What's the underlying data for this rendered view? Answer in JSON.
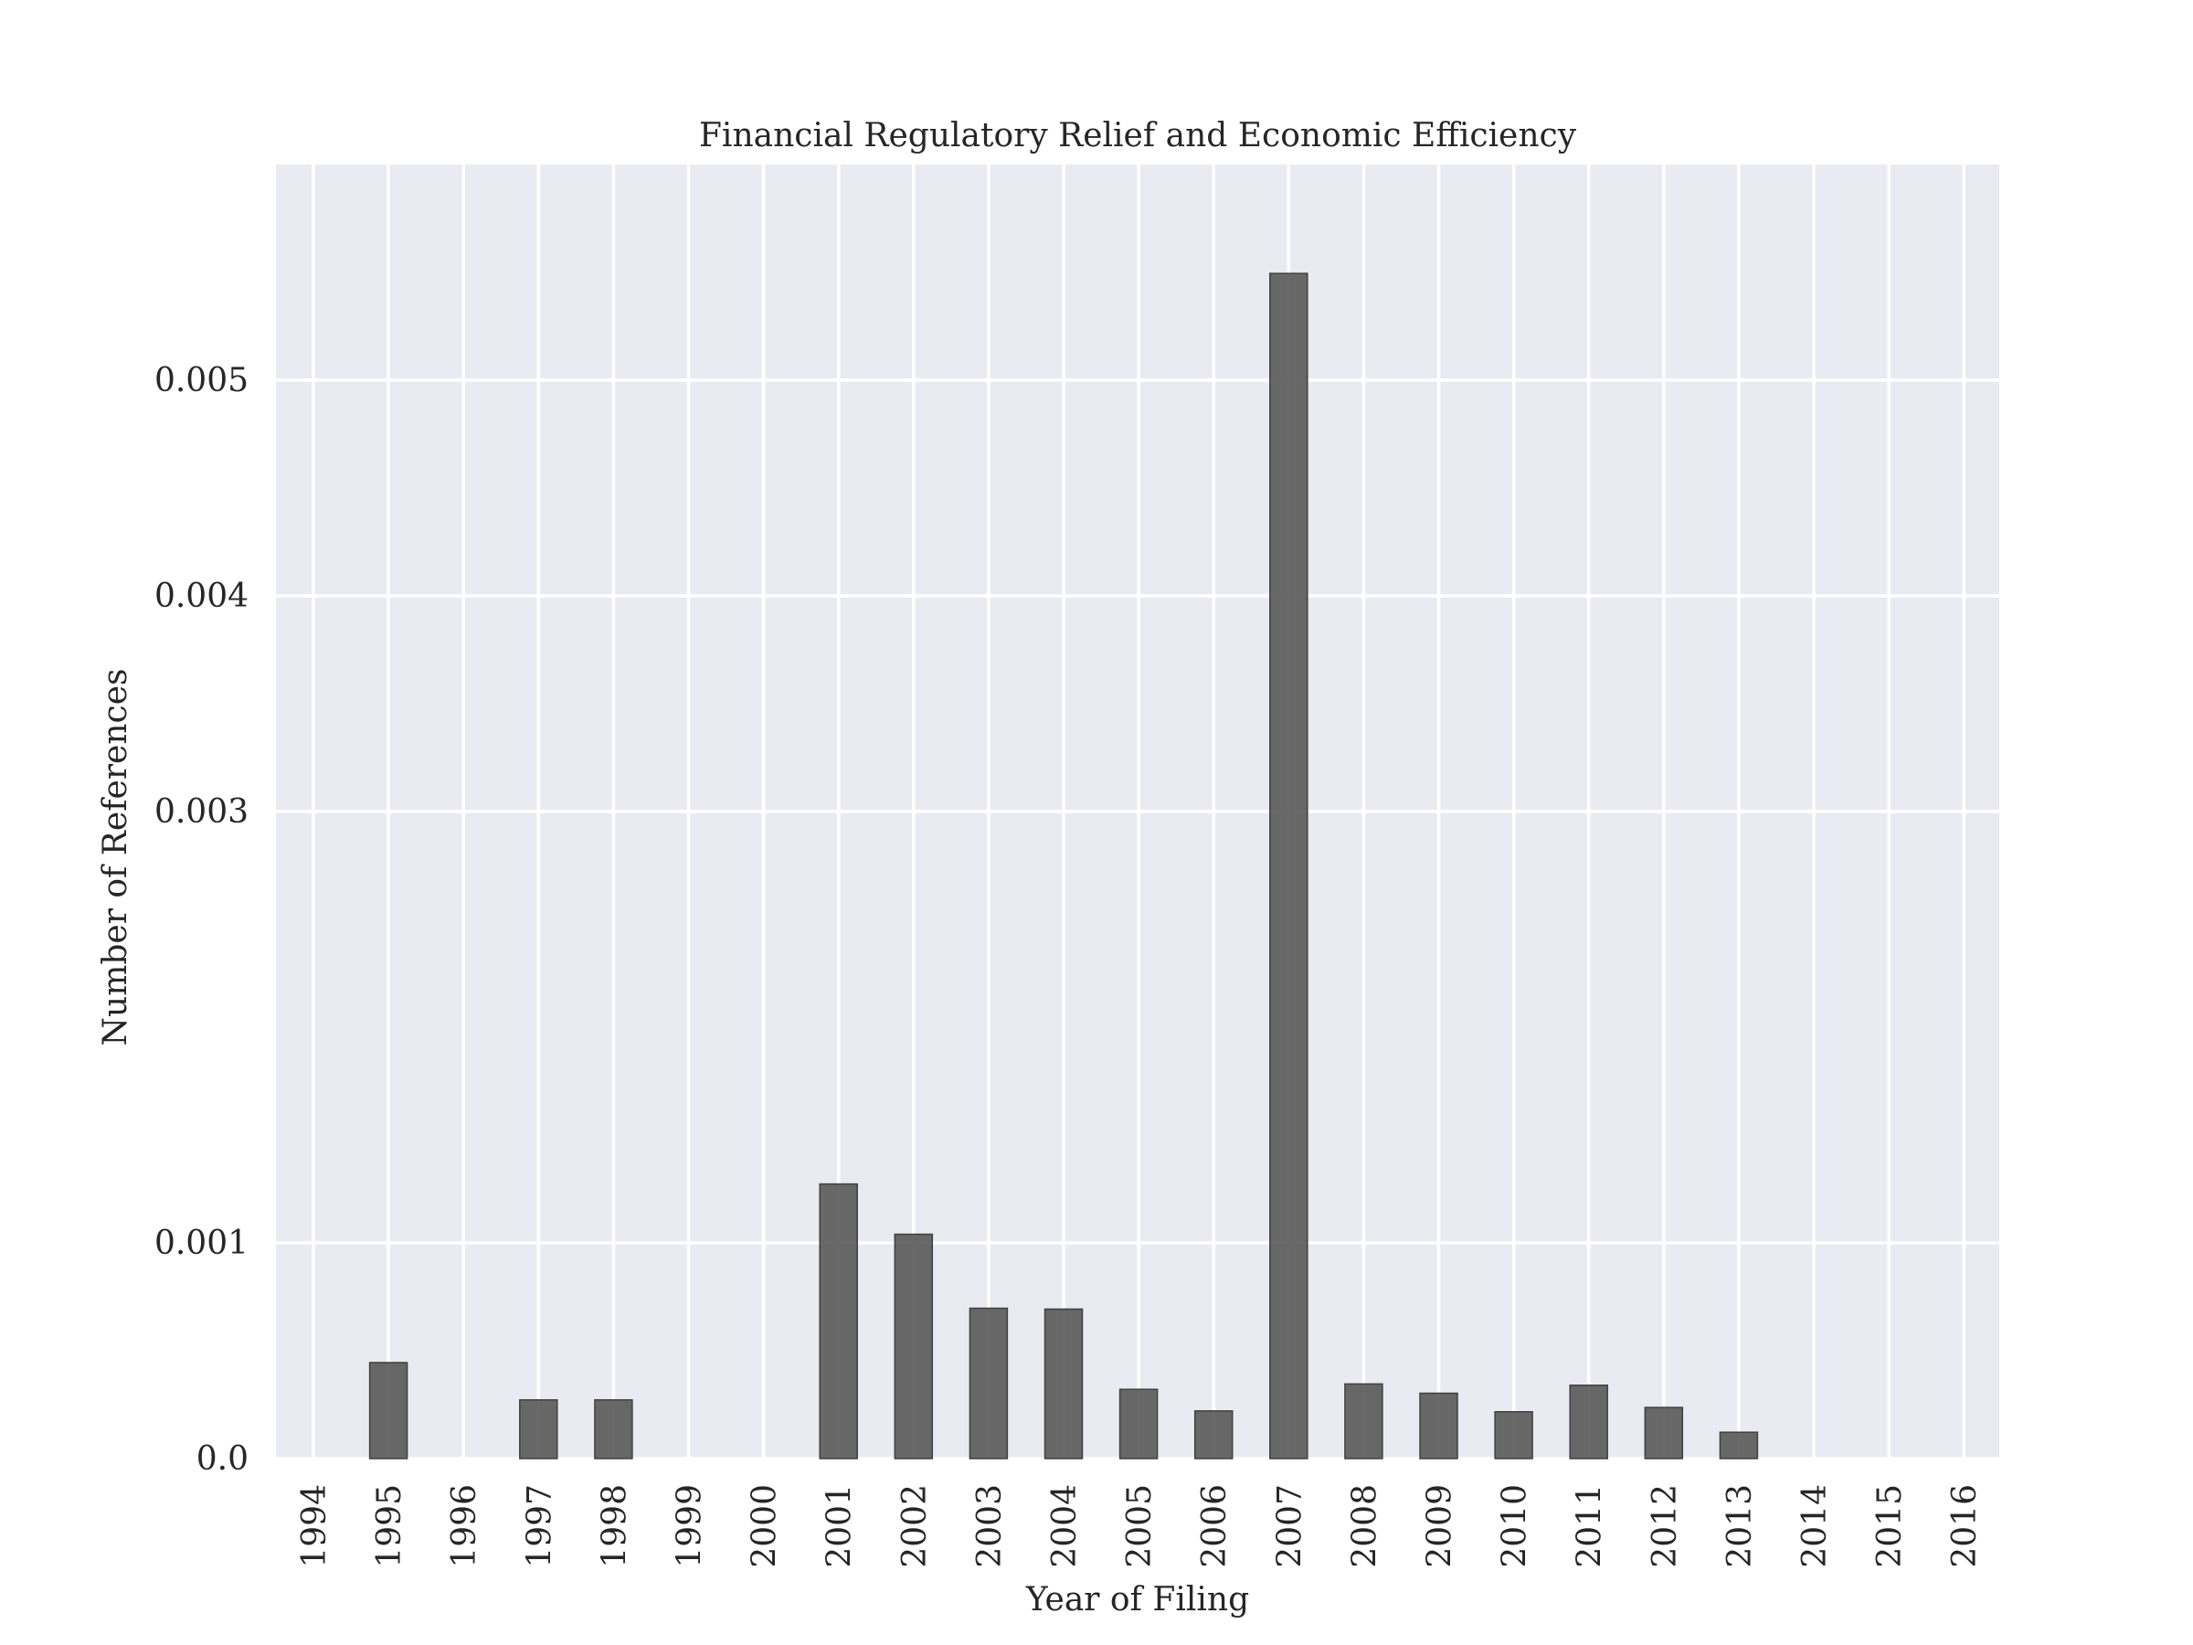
{
  "chart_data": {
    "type": "bar",
    "title": "Financial Regulatory Relief and Economic Efficiency",
    "xlabel": "Year of Filing",
    "ylabel": "Number of References",
    "categories": [
      "1994",
      "1995",
      "1996",
      "1997",
      "1998",
      "1999",
      "2000",
      "2001",
      "2002",
      "2003",
      "2004",
      "2005",
      "2006",
      "2007",
      "2008",
      "2009",
      "2010",
      "2011",
      "2012",
      "2013",
      "2014",
      "2015",
      "2016"
    ],
    "values": [
      0.0,
      0.000445,
      0.0,
      0.000272,
      0.000272,
      0.0,
      0.0,
      0.001273,
      0.00104,
      0.000697,
      0.000693,
      0.000321,
      0.000221,
      0.005495,
      0.000346,
      0.000303,
      0.000217,
      0.00034,
      0.000237,
      0.000122,
      0.0,
      0.0,
      0.0
    ],
    "yticks": [
      {
        "value": 0.0,
        "label": "0.0"
      },
      {
        "value": 0.001,
        "label": "0.001"
      },
      {
        "value": 0.003,
        "label": "0.003"
      },
      {
        "value": 0.004,
        "label": "0.004"
      },
      {
        "value": 0.005,
        "label": "0.005"
      }
    ],
    "ylim": [
      0,
      0.006
    ],
    "grid": true,
    "colors": {
      "plot_background": "#eaeaf2",
      "grid": "#ffffff",
      "bar_fill": "#595959",
      "bar_stroke": "#404040",
      "text": "#262626"
    }
  }
}
